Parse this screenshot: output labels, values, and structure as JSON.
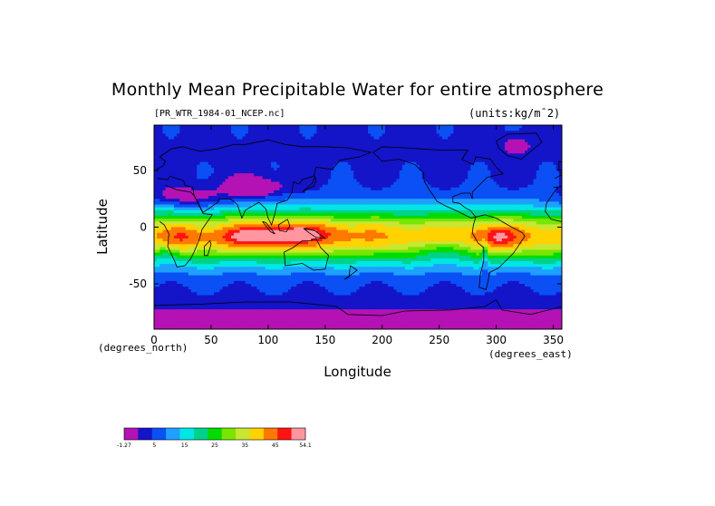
{
  "chart_data": {
    "type": "heatmap",
    "title": "Monthly Mean Precipitable Water for entire atmosphere",
    "file_label": "[PR_WTR_1984-01_NCEP.nc]",
    "units_label": "(units:kg/m¯2)",
    "xlabel": "Longitude",
    "ylabel": "Latitude",
    "x_unit": "(degrees_east)",
    "y_unit": "(degrees_north)",
    "xlim": [
      0,
      357.5
    ],
    "ylim": [
      -90,
      90
    ],
    "x_ticks": [
      0,
      50,
      100,
      150,
      200,
      250,
      300,
      350
    ],
    "y_ticks": [
      50,
      0,
      -50
    ],
    "colorbar": {
      "levels": [
        "-1.27",
        "5",
        "15",
        "25",
        "35",
        "45",
        "54.1"
      ],
      "colors": [
        "#b412b4",
        "#1414c8",
        "#0a50f5",
        "#1ea0ff",
        "#00e6e6",
        "#00d28c",
        "#00dc00",
        "#78e600",
        "#c8e632",
        "#ffd200",
        "#ff7800",
        "#ff1414",
        "#ff96a0"
      ]
    }
  }
}
